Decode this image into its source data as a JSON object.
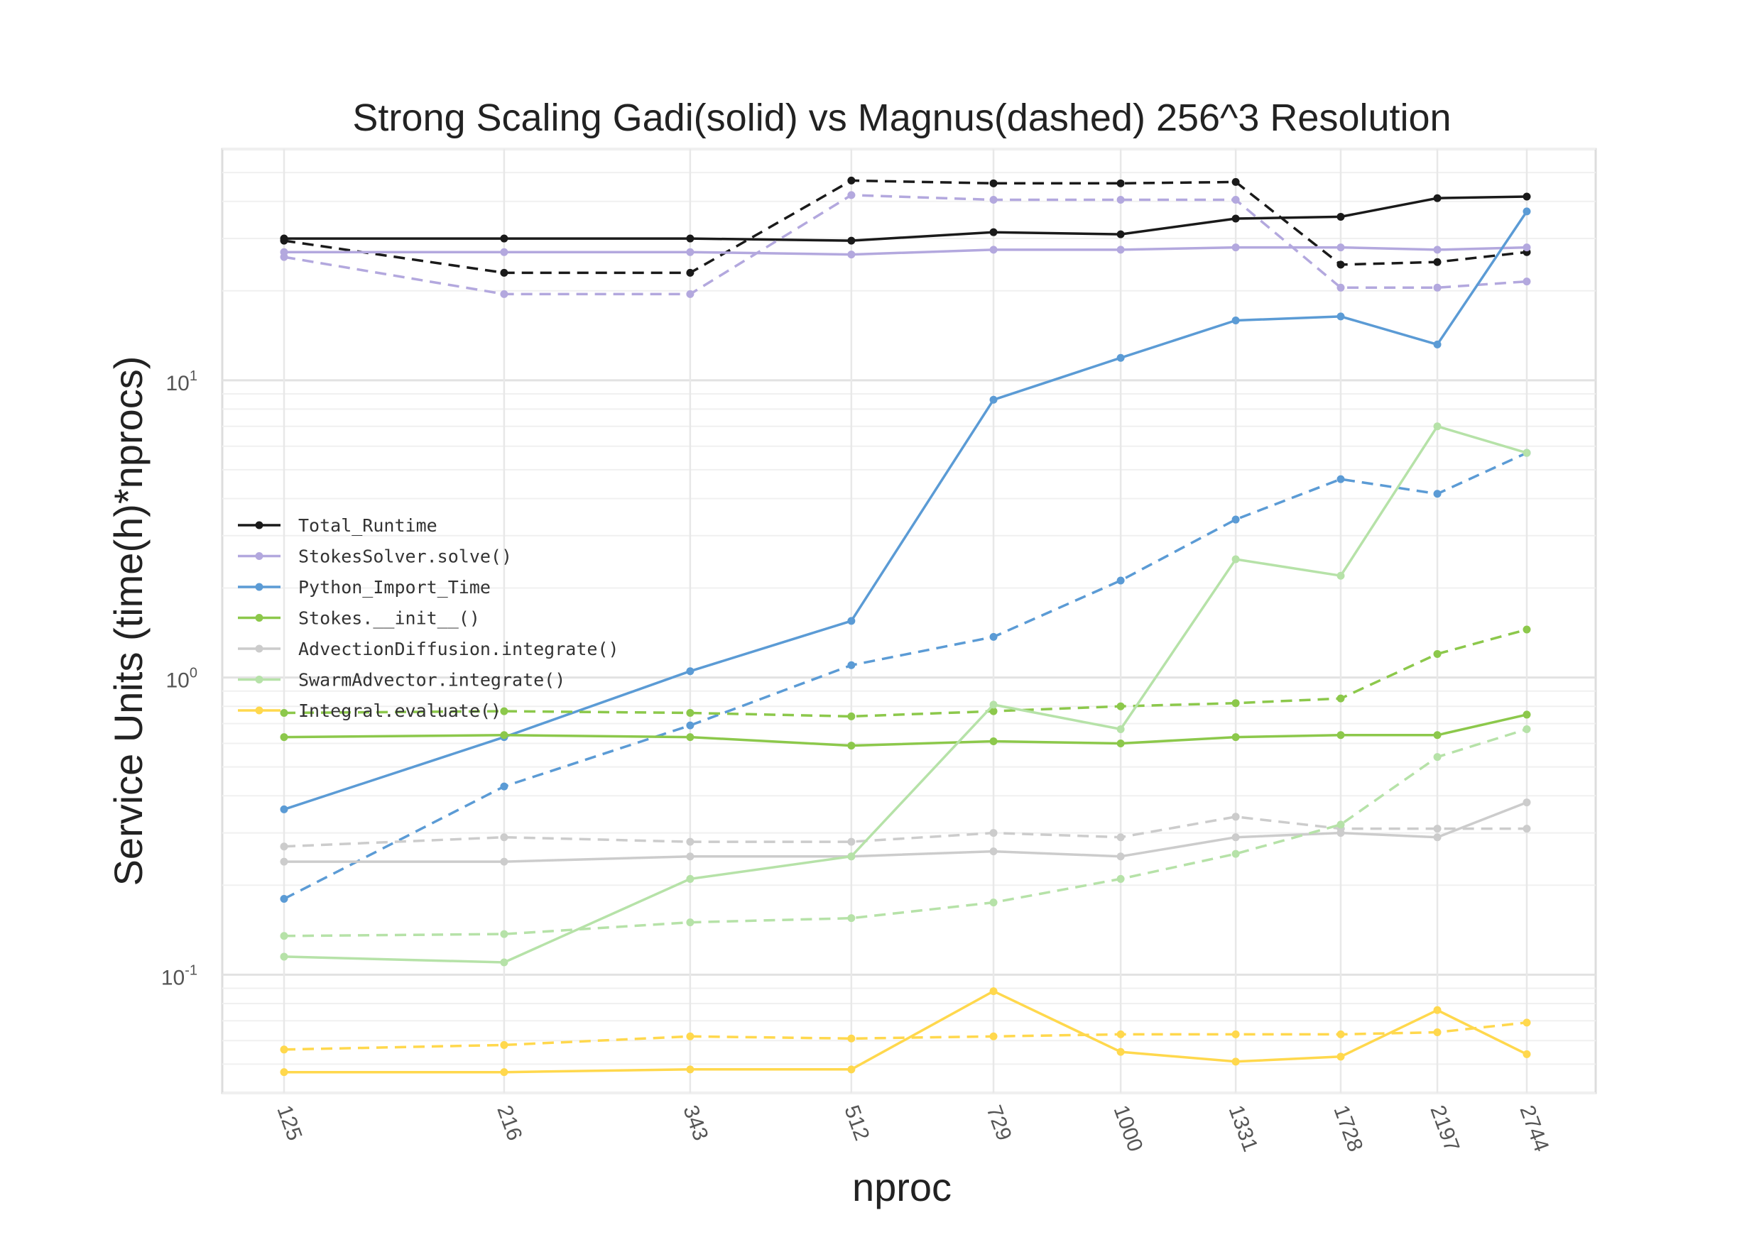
{
  "chart_data": {
    "type": "line",
    "title": "Strong Scaling Gadi(solid) vs Magnus(dashed) 256^3 Resolution",
    "xlabel": "nproc",
    "ylabel": "Service Units (time(h)*nprocs)",
    "x": [
      125,
      216,
      343,
      512,
      729,
      1000,
      1331,
      1728,
      2197,
      2744
    ],
    "x_tick_labels": [
      "125",
      "216",
      "343",
      "512",
      "729",
      "1000",
      "1331",
      "1728",
      "2197",
      "2744"
    ],
    "x_scale": "log",
    "y_scale": "log",
    "ylim": [
      0.04,
      60
    ],
    "y_ticks": [
      {
        "base": "10",
        "exp": "1",
        "value": 10
      },
      {
        "base": "10",
        "exp": "0",
        "value": 1
      },
      {
        "base": "10",
        "exp": "-1",
        "value": 0.1
      }
    ],
    "grid": true,
    "legend_position": "center-left",
    "legend_labels": {
      "Total_Runtime": "Total_Runtime",
      "StokesSolver.solve()": "StokesSolver.solve()",
      "Python_Import_Time": "Python_Import_Time",
      "Stokes.__init__()": "Stokes.__init__()",
      "AdvectionDiffusion.integrate()": "AdvectionDiffusion.integrate()",
      "SwarmAdvector.integrate()": "SwarmAdvector.integrate()",
      "Integral.evaluate()": "Integral.evaluate()"
    },
    "series": [
      {
        "name": "Total_Runtime",
        "machine": "Gadi",
        "style": "solid",
        "color": "#1a1a1a",
        "values": [
          30,
          30,
          30,
          29.5,
          31.5,
          31,
          35,
          35.5,
          41,
          41.5
        ]
      },
      {
        "name": "Total_Runtime",
        "machine": "Magnus",
        "style": "dashed",
        "color": "#1a1a1a",
        "values": [
          29.5,
          23,
          23,
          47,
          46,
          46,
          46.5,
          24.5,
          25,
          27
        ]
      },
      {
        "name": "StokesSolver.solve()",
        "machine": "Gadi",
        "style": "solid",
        "color": "#b3a8de",
        "values": [
          27,
          27,
          27,
          26.5,
          27.5,
          27.5,
          28,
          28,
          27.5,
          28
        ]
      },
      {
        "name": "StokesSolver.solve()",
        "machine": "Magnus",
        "style": "dashed",
        "color": "#b3a8de",
        "values": [
          26,
          19.5,
          19.5,
          42,
          40.5,
          40.5,
          40.5,
          20.5,
          20.5,
          21.5
        ]
      },
      {
        "name": "Python_Import_Time",
        "machine": "Gadi",
        "style": "solid",
        "color": "#5b9bd5",
        "values": [
          0.36,
          0.63,
          1.05,
          1.55,
          8.6,
          11.9,
          15.9,
          16.4,
          13.2,
          37
        ]
      },
      {
        "name": "Python_Import_Time",
        "machine": "Magnus",
        "style": "dashed",
        "color": "#5b9bd5",
        "values": [
          0.18,
          0.43,
          0.69,
          1.1,
          1.37,
          2.12,
          3.4,
          4.65,
          4.15,
          5.7
        ]
      },
      {
        "name": "Stokes.__init__()",
        "machine": "Gadi",
        "style": "solid",
        "color": "#8cc84b",
        "values": [
          0.63,
          0.64,
          0.63,
          0.59,
          0.61,
          0.6,
          0.63,
          0.64,
          0.64,
          0.75
        ]
      },
      {
        "name": "Stokes.__init__()",
        "machine": "Magnus",
        "style": "dashed",
        "color": "#8cc84b",
        "values": [
          0.76,
          0.77,
          0.76,
          0.74,
          0.77,
          0.8,
          0.82,
          0.85,
          1.2,
          1.45
        ]
      },
      {
        "name": "AdvectionDiffusion.integrate()",
        "machine": "Gadi",
        "style": "solid",
        "color": "#cccccc",
        "values": [
          0.24,
          0.24,
          0.25,
          0.25,
          0.26,
          0.25,
          0.29,
          0.3,
          0.29,
          0.38
        ]
      },
      {
        "name": "AdvectionDiffusion.integrate()",
        "machine": "Magnus",
        "style": "dashed",
        "color": "#cccccc",
        "values": [
          0.27,
          0.29,
          0.28,
          0.28,
          0.3,
          0.29,
          0.34,
          0.31,
          0.31,
          0.31
        ]
      },
      {
        "name": "SwarmAdvector.integrate()",
        "machine": "Gadi",
        "style": "solid",
        "color": "#b6e2a8",
        "values": [
          0.115,
          0.11,
          0.21,
          0.25,
          0.81,
          0.67,
          2.5,
          2.2,
          7,
          5.7
        ]
      },
      {
        "name": "SwarmAdvector.integrate()",
        "machine": "Magnus",
        "style": "dashed",
        "color": "#b6e2a8",
        "values": [
          0.135,
          0.137,
          0.15,
          0.155,
          0.175,
          0.21,
          0.255,
          0.32,
          0.54,
          0.67
        ]
      },
      {
        "name": "Integral.evaluate()",
        "machine": "Gadi",
        "style": "solid",
        "color": "#ffd84d",
        "values": [
          0.047,
          0.047,
          0.048,
          0.048,
          0.088,
          0.055,
          0.051,
          0.053,
          0.076,
          0.054
        ]
      },
      {
        "name": "Integral.evaluate()",
        "machine": "Magnus",
        "style": "dashed",
        "color": "#ffd84d",
        "values": [
          0.056,
          0.058,
          0.062,
          0.061,
          0.062,
          0.063,
          0.063,
          0.063,
          0.064,
          0.069
        ]
      }
    ]
  }
}
